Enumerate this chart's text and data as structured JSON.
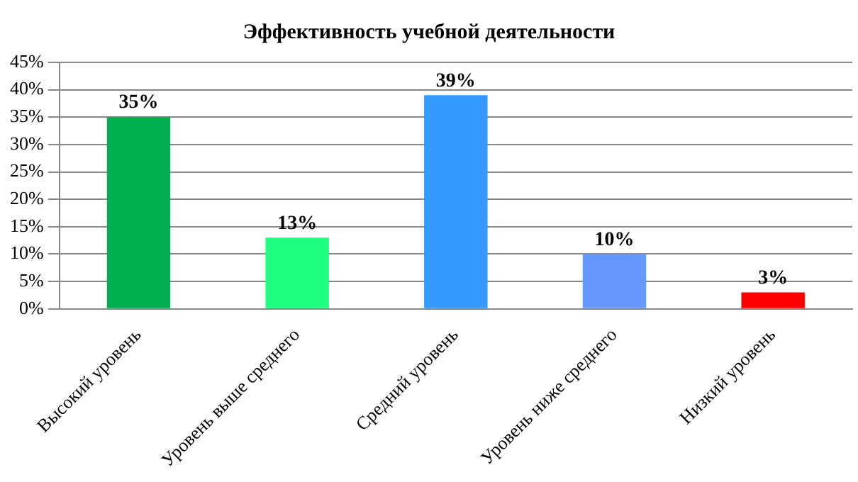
{
  "chart_data": {
    "type": "bar",
    "title": "Эффективность учебной деятельности",
    "categories": [
      "Высокий уровень",
      "Уровень выше среднего",
      "Средний уровень",
      "Уровень ниже среднего",
      "Низкий уровень"
    ],
    "values": [
      35,
      13,
      39,
      10,
      3
    ],
    "colors": [
      "#00b050",
      "#1eff80",
      "#3399ff",
      "#6699ff",
      "#ff0000"
    ],
    "value_labels": [
      "35%",
      "13%",
      "39%",
      "10%",
      "3%"
    ],
    "ylim": [
      0,
      45
    ],
    "yticks": [
      {
        "value": 0,
        "label": "0%"
      },
      {
        "value": 5,
        "label": "5%"
      },
      {
        "value": 10,
        "label": "10%"
      },
      {
        "value": 15,
        "label": "15%"
      },
      {
        "value": 20,
        "label": "20%"
      },
      {
        "value": 25,
        "label": "25%"
      },
      {
        "value": 30,
        "label": "30%"
      },
      {
        "value": 35,
        "label": "35%"
      },
      {
        "value": 40,
        "label": "40%"
      },
      {
        "value": 45,
        "label": "45%"
      }
    ],
    "grid": "y",
    "legend": false
  }
}
